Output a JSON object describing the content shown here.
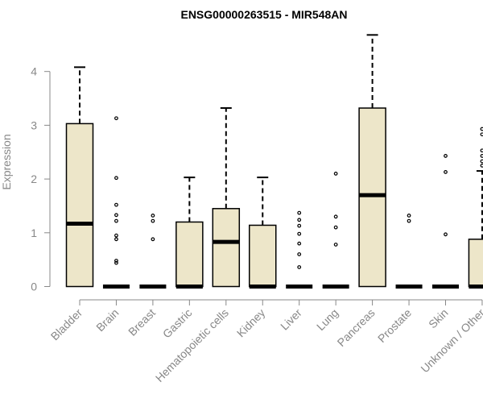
{
  "chart_data": {
    "type": "boxplot",
    "title": "ENSG00000263515 - MIR548AN",
    "ylabel": "Expression",
    "ylim": [
      0,
      4.9
    ],
    "yticks": [
      0,
      1,
      2,
      3,
      4
    ],
    "box_fill": "#ede6c9",
    "box_stroke": "#000000",
    "axis_color": "#888888",
    "categories": [
      "Bladder",
      "Brain",
      "Breast",
      "Gastric",
      "Hematopoietic cells",
      "Kidney",
      "Liver",
      "Lung",
      "Pancreas",
      "Prostate",
      "Skin",
      "Unknown / Other"
    ],
    "boxes": [
      {
        "q1": 0,
        "median": 1.17,
        "q3": 3.03,
        "whisker_low": 0,
        "whisker_high": 4.08,
        "outliers": []
      },
      {
        "q1": 0,
        "median": 0,
        "q3": 0,
        "whisker_low": 0,
        "whisker_high": 0,
        "outliers": [
          3.13,
          2.02,
          1.52,
          1.33,
          1.22,
          0.95,
          0.88,
          0.48,
          0.44
        ]
      },
      {
        "q1": 0,
        "median": 0,
        "q3": 0,
        "whisker_low": 0,
        "whisker_high": 0,
        "outliers": [
          1.32,
          1.22,
          0.88
        ]
      },
      {
        "q1": 0,
        "median": 0,
        "q3": 1.2,
        "whisker_low": 0,
        "whisker_high": 2.03,
        "outliers": []
      },
      {
        "q1": 0,
        "median": 0.83,
        "q3": 1.45,
        "whisker_low": 0,
        "whisker_high": 3.32,
        "outliers": []
      },
      {
        "q1": 0,
        "median": 0,
        "q3": 1.14,
        "whisker_low": 0,
        "whisker_high": 2.03,
        "outliers": []
      },
      {
        "q1": 0,
        "median": 0,
        "q3": 0,
        "whisker_low": 0,
        "whisker_high": 0,
        "outliers": [
          1.37,
          1.24,
          1.13,
          0.98,
          0.8,
          0.6,
          0.36
        ]
      },
      {
        "q1": 0,
        "median": 0,
        "q3": 0,
        "whisker_low": 0,
        "whisker_high": 0,
        "outliers": [
          2.1,
          1.3,
          1.1,
          0.78
        ]
      },
      {
        "q1": 0,
        "median": 1.7,
        "q3": 3.32,
        "whisker_low": 0,
        "whisker_high": 4.68,
        "outliers": []
      },
      {
        "q1": 0,
        "median": 0,
        "q3": 0,
        "whisker_low": 0,
        "whisker_high": 0,
        "outliers": [
          1.32,
          1.22
        ]
      },
      {
        "q1": 0,
        "median": 0,
        "q3": 0,
        "whisker_low": 0,
        "whisker_high": 0,
        "outliers": [
          2.43,
          2.13,
          0.97
        ]
      },
      {
        "q1": 0,
        "median": 0,
        "q3": 0.88,
        "whisker_low": 0,
        "whisker_high": 2.15,
        "outliers": [
          2.93,
          2.83,
          2.53,
          2.43,
          2.33,
          2.25
        ]
      }
    ]
  }
}
